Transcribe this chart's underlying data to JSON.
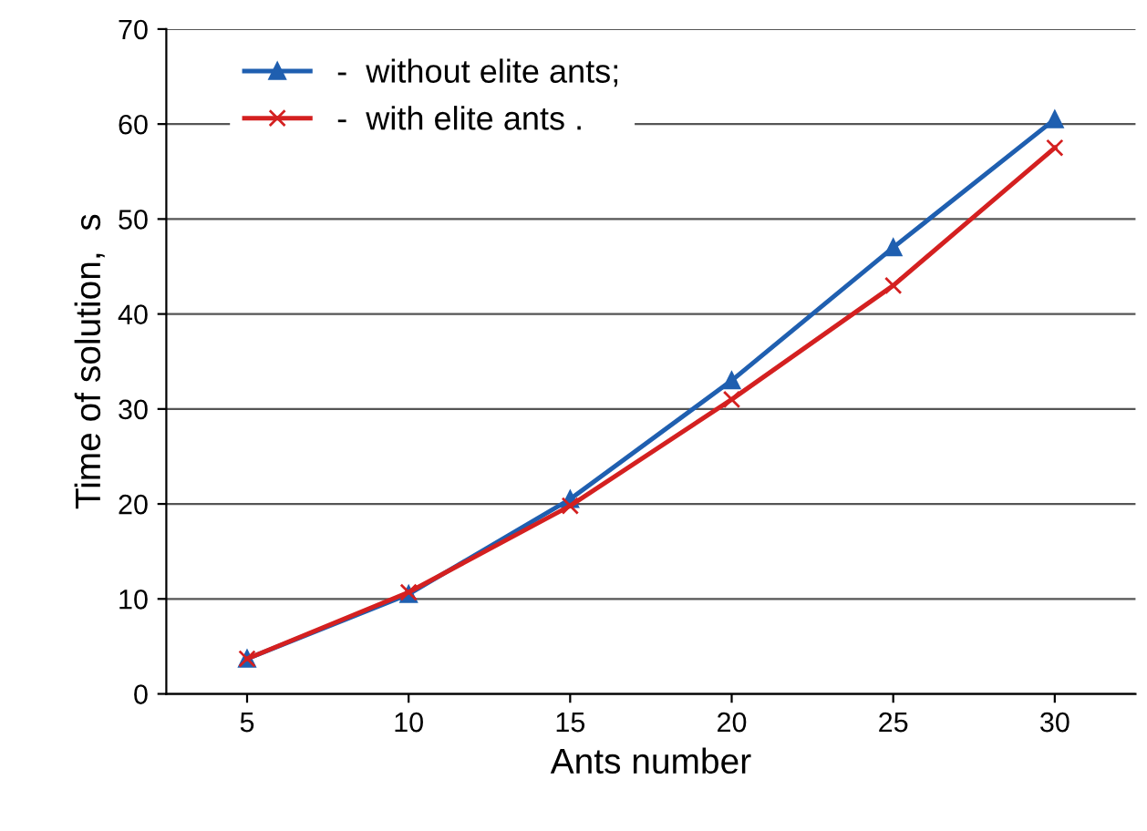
{
  "chart_data": {
    "type": "line",
    "xlabel": "Ants number",
    "ylabel": "Time of solution,  s",
    "categories": [
      "5",
      "10",
      "15",
      "20",
      "25",
      "30"
    ],
    "series": [
      {
        "name": "-  without elite ants;",
        "color": "#1f5fb0",
        "marker": "triangle",
        "values": [
          3.7,
          10.5,
          20.5,
          33,
          47,
          60.5
        ]
      },
      {
        "name": "-  with elite ants .",
        "color": "#d42020",
        "marker": "cross",
        "values": [
          3.7,
          10.7,
          19.8,
          31,
          43,
          57.5
        ]
      }
    ],
    "ylim": [
      0,
      70
    ],
    "yticks": [
      0,
      10,
      20,
      30,
      40,
      50,
      60,
      70
    ],
    "grid": "y",
    "legend": "top left",
    "line_style": "solid"
  }
}
